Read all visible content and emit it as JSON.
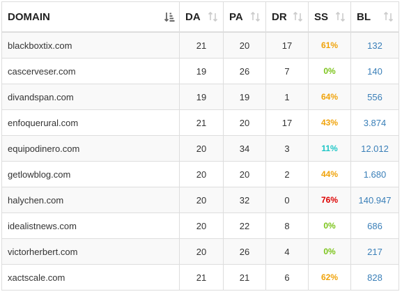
{
  "columns": [
    {
      "label": "DOMAIN",
      "sort_icon": "sort-descending-active-icon"
    },
    {
      "label": "DA",
      "sort_icon": "sort-both-icon"
    },
    {
      "label": "PA",
      "sort_icon": "sort-both-icon"
    },
    {
      "label": "DR",
      "sort_icon": "sort-both-icon"
    },
    {
      "label": "SS",
      "sort_icon": "sort-both-icon"
    },
    {
      "label": "BL",
      "sort_icon": "sort-both-icon"
    }
  ],
  "ss_colors": {
    "orange": "#f0a30a",
    "green": "#7cc41b",
    "cyan": "#1ec6c6",
    "red": "#dd0000"
  },
  "bl_color": "#3a7fb8",
  "rows": [
    {
      "domain": "blackboxtix.com",
      "da": "21",
      "pa": "20",
      "dr": "17",
      "ss": "61%",
      "ss_color": "orange",
      "bl": "132"
    },
    {
      "domain": "cascerveser.com",
      "da": "19",
      "pa": "26",
      "dr": "7",
      "ss": "0%",
      "ss_color": "green",
      "bl": "140"
    },
    {
      "domain": "divandspan.com",
      "da": "19",
      "pa": "19",
      "dr": "1",
      "ss": "64%",
      "ss_color": "orange",
      "bl": "556"
    },
    {
      "domain": "enfoquerural.com",
      "da": "21",
      "pa": "20",
      "dr": "17",
      "ss": "43%",
      "ss_color": "orange",
      "bl": "3.874"
    },
    {
      "domain": "equipodinero.com",
      "da": "20",
      "pa": "34",
      "dr": "3",
      "ss": "11%",
      "ss_color": "cyan",
      "bl": "12.012"
    },
    {
      "domain": "getlowblog.com",
      "da": "20",
      "pa": "20",
      "dr": "2",
      "ss": "44%",
      "ss_color": "orange",
      "bl": "1.680"
    },
    {
      "domain": "halychen.com",
      "da": "20",
      "pa": "32",
      "dr": "0",
      "ss": "76%",
      "ss_color": "red",
      "bl": "140.947"
    },
    {
      "domain": "idealistnews.com",
      "da": "20",
      "pa": "22",
      "dr": "8",
      "ss": "0%",
      "ss_color": "green",
      "bl": "686"
    },
    {
      "domain": "victorherbert.com",
      "da": "20",
      "pa": "26",
      "dr": "4",
      "ss": "0%",
      "ss_color": "green",
      "bl": "217"
    },
    {
      "domain": "xactscale.com",
      "da": "21",
      "pa": "21",
      "dr": "6",
      "ss": "62%",
      "ss_color": "orange",
      "bl": "828"
    }
  ]
}
